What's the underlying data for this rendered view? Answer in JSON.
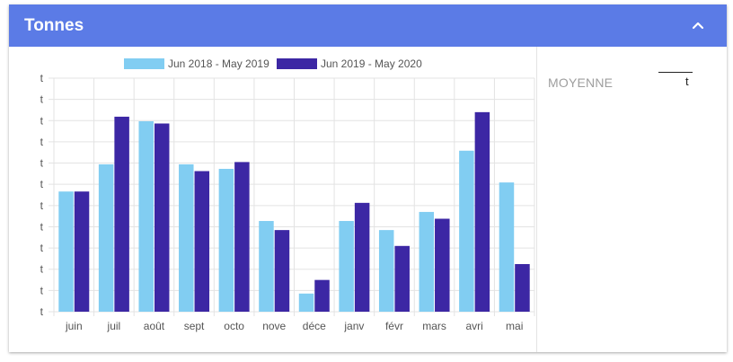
{
  "header": {
    "title": "Tonnes"
  },
  "icons": {
    "collapse": "chevron-up-icon"
  },
  "side": {
    "average_label": "MOYENNE",
    "average_unit": "t"
  },
  "colors": {
    "header_bg": "#5b7be6",
    "series1": "#81cdf2",
    "series2": "#3c27a4"
  },
  "chart_data": {
    "type": "bar",
    "categories": [
      "juin",
      "juil",
      "août",
      "sept",
      "octo",
      "nove",
      "déce",
      "janv",
      "févr",
      "mars",
      "avri",
      "mai"
    ],
    "series": [
      {
        "name": "Jun 2018 - May 2019",
        "values": [
          5.3,
          6.5,
          8.4,
          6.5,
          6.3,
          4.0,
          0.8,
          4.0,
          3.6,
          4.4,
          7.1,
          5.7
        ]
      },
      {
        "name": "Jun 2019 - May 2020",
        "values": [
          5.3,
          8.6,
          8.3,
          6.2,
          6.6,
          3.6,
          1.4,
          4.8,
          2.9,
          4.1,
          8.8,
          2.1
        ]
      }
    ],
    "y_tick_labels": [
      "t",
      "t",
      "t",
      "t",
      "t",
      "t",
      "t",
      "t",
      "t",
      "t",
      "t",
      "t"
    ],
    "ylim": [
      0,
      10.3
    ],
    "grid": true,
    "legend": "top"
  }
}
